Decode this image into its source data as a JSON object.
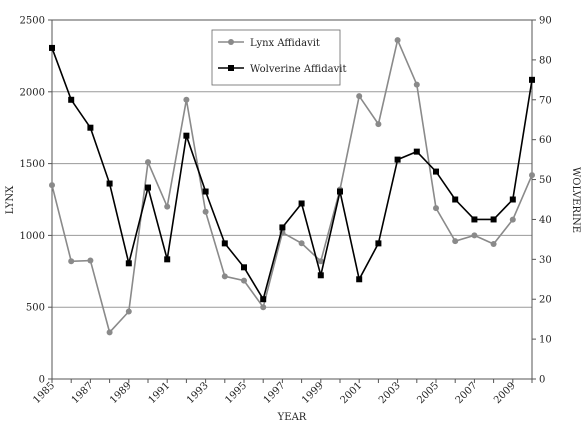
{
  "chart_data": {
    "type": "line",
    "title": "",
    "xlabel": "YEAR",
    "ylabel_left": "LYNX",
    "ylabel_right": "WOLVERINE",
    "x": [
      1985,
      1986,
      1987,
      1988,
      1989,
      1990,
      1991,
      1992,
      1993,
      1994,
      1995,
      1996,
      1997,
      1998,
      1999,
      2000,
      2001,
      2002,
      2003,
      2004,
      2005,
      2006,
      2007,
      2008,
      2009,
      2010
    ],
    "x_tick_labels": [
      "1985",
      "1987",
      "1989",
      "1991",
      "1993",
      "1995",
      "1997",
      "1999",
      "2001",
      "2003",
      "2005",
      "2007",
      "2009"
    ],
    "y_left_ticks": [
      "0",
      "500",
      "1000",
      "1500",
      "2000",
      "2500"
    ],
    "y_right_ticks": [
      "0",
      "10",
      "20",
      "30",
      "40",
      "50",
      "60",
      "70",
      "80",
      "90"
    ],
    "ylim_left": [
      0,
      2500
    ],
    "ylim_right": [
      0,
      90
    ],
    "grid": true,
    "legend_position": "top-center",
    "series": [
      {
        "name": "Lynx Affidavit",
        "axis": "left",
        "color": "#8a8a8a",
        "marker": "circle",
        "values": [
          1350,
          820,
          825,
          325,
          470,
          1510,
          1200,
          1945,
          1165,
          715,
          685,
          500,
          1020,
          945,
          820,
          1320,
          1970,
          1775,
          2360,
          2050,
          1190,
          960,
          1000,
          940,
          1110,
          1420
        ]
      },
      {
        "name": "Wolverine Affidavit",
        "axis": "right",
        "color": "#000000",
        "marker": "square",
        "values": [
          83,
          70,
          63,
          49,
          29,
          48,
          30,
          61,
          47,
          34,
          28,
          20,
          38,
          44,
          26,
          47,
          25,
          34,
          55,
          57,
          52,
          45,
          40,
          40,
          45,
          75
        ]
      }
    ]
  }
}
